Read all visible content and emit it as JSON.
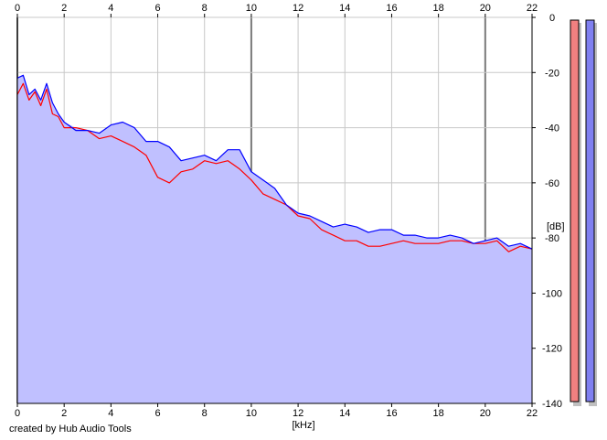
{
  "credit": "created by Hub Audio Tools",
  "colors": {
    "background": "#ffffff",
    "plot_fill": "#c0c0ff",
    "grid_minor": "#c8c8c8",
    "grid_major": "#7a7a7a",
    "left_channel": "#ff0000",
    "right_channel": "#0000ff",
    "meter_left": "#f08080",
    "meter_right": "#8080f0",
    "meter_shadow": "#c0c0c0"
  },
  "chart_data": {
    "type": "area",
    "title": "",
    "xlabel": "[kHz]",
    "ylabel": "[dB]",
    "xlim": [
      0,
      22
    ],
    "ylim": [
      -140,
      0
    ],
    "x_ticks": [
      "0",
      "2",
      "4",
      "6",
      "8",
      "10",
      "12",
      "14",
      "16",
      "18",
      "20",
      "22"
    ],
    "y_ticks": [
      "0",
      "-20",
      "-40",
      "-60",
      "-80",
      "-100",
      "-120",
      "-140"
    ],
    "x_tick_values": [
      0,
      2,
      4,
      6,
      8,
      10,
      12,
      14,
      16,
      18,
      20,
      22
    ],
    "y_tick_values": [
      0,
      -20,
      -40,
      -60,
      -80,
      -100,
      -120,
      -140
    ],
    "major_x_gridlines": [
      0,
      10,
      20
    ],
    "grid": true,
    "legend": "none",
    "x_frequency_khz": [
      0,
      0.25,
      0.5,
      0.75,
      1,
      1.25,
      1.5,
      1.75,
      2,
      2.5,
      3,
      3.5,
      4,
      4.5,
      5,
      5.5,
      6,
      6.5,
      7,
      7.5,
      8,
      8.5,
      9,
      9.5,
      10,
      10.5,
      11,
      11.5,
      12,
      12.5,
      13,
      13.5,
      14,
      14.5,
      15,
      15.5,
      16,
      16.5,
      17,
      17.5,
      18,
      18.5,
      19,
      19.5,
      20,
      20.5,
      21,
      21.5,
      22
    ],
    "series": [
      {
        "color": "#ff0000",
        "values": [
          -28,
          -24,
          -30,
          -27,
          -32,
          -26,
          -35,
          -36,
          -40,
          -40,
          -41,
          -44,
          -43,
          -45,
          -47,
          -50,
          -58,
          -60,
          -56,
          -55,
          -52,
          -53,
          -52,
          -55,
          -59,
          -64,
          -66,
          -68,
          -72,
          -73,
          -77,
          -79,
          -81,
          -81,
          -83,
          -83,
          -82,
          -81,
          -82,
          -82,
          -82,
          -81,
          -81,
          -82,
          -82,
          -81,
          -85,
          -83,
          -84
        ]
      },
      {
        "color": "#0000ff",
        "values": [
          -22,
          -21,
          -28,
          -26,
          -30,
          -24,
          -31,
          -35,
          -38,
          -41,
          -41,
          -42,
          -39,
          -38,
          -40,
          -45,
          -45,
          -47,
          -52,
          -51,
          -50,
          -52,
          -48,
          -48,
          -56,
          -59,
          -62,
          -68,
          -71,
          -72,
          -74,
          -76,
          -75,
          -76,
          -78,
          -77,
          -77,
          -79,
          -79,
          -80,
          -80,
          -79,
          -80,
          -82,
          -81,
          -80,
          -83,
          -82,
          -84
        ]
      }
    ]
  },
  "meters": [
    {
      "channel": "left",
      "level": 1.0
    },
    {
      "channel": "right",
      "level": 1.0
    }
  ]
}
